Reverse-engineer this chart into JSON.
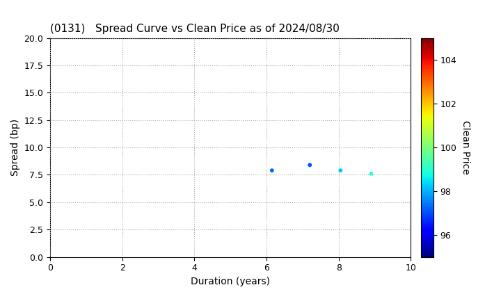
{
  "title": "(0131)   Spread Curve vs Clean Price as of 2024/08/30",
  "xlabel": "Duration (years)",
  "ylabel": "Spread (bp)",
  "xlim": [
    0,
    10
  ],
  "ylim": [
    0,
    20
  ],
  "xticks": [
    0,
    2,
    4,
    6,
    8,
    10
  ],
  "yticks": [
    0.0,
    2.5,
    5.0,
    7.5,
    10.0,
    12.5,
    15.0,
    17.5,
    20.0
  ],
  "colorbar_label": "Clean Price",
  "cbar_vmin": 95,
  "cbar_vmax": 105,
  "cbar_ticks": [
    96,
    98,
    100,
    102,
    104
  ],
  "points": [
    {
      "duration": 6.15,
      "spread": 7.9,
      "price": 97.3
    },
    {
      "duration": 7.2,
      "spread": 8.4,
      "price": 97.1
    },
    {
      "duration": 8.05,
      "spread": 7.9,
      "price": 98.2
    },
    {
      "duration": 8.9,
      "spread": 7.6,
      "price": 99.0
    }
  ],
  "background_color": "#ffffff",
  "grid_color": "#aaaaaa",
  "title_fontsize": 11,
  "axis_fontsize": 10,
  "tick_fontsize": 9,
  "cbar_fontsize": 9
}
